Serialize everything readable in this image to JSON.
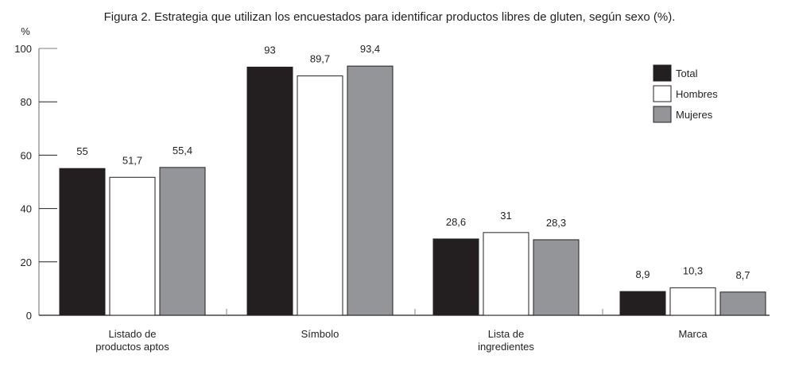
{
  "chart_data": {
    "type": "bar",
    "title": "Figura 2. Estrategia que utilizan los encuestados para identificar productos libres de gluten, según sexo (%).",
    "ylabel": "%",
    "xlabel": "",
    "ylim": [
      0,
      100
    ],
    "yticks": [
      "0",
      "20",
      "40",
      "60",
      "80",
      "100"
    ],
    "categories": [
      [
        "Listado de",
        "productos aptos"
      ],
      [
        "Símbolo"
      ],
      [
        "Lista de",
        "ingredientes"
      ],
      [
        "Marca"
      ]
    ],
    "series": [
      {
        "name": "Total",
        "color": "#231f20",
        "values": [
          55,
          93,
          28.6,
          8.9
        ],
        "labels": [
          "55",
          "93",
          "28,6",
          "8,9"
        ]
      },
      {
        "name": "Hombres",
        "color": "#ffffff",
        "values": [
          51.7,
          89.7,
          31,
          10.3
        ],
        "labels": [
          "51,7",
          "89,7",
          "31",
          "10,3"
        ]
      },
      {
        "name": "Mujeres",
        "color": "#939598",
        "values": [
          55.4,
          93.4,
          28.3,
          8.7
        ],
        "labels": [
          "55,4",
          "93,4",
          "28,3",
          "8,7"
        ]
      }
    ],
    "legend_position": "top-right",
    "grid": false
  }
}
